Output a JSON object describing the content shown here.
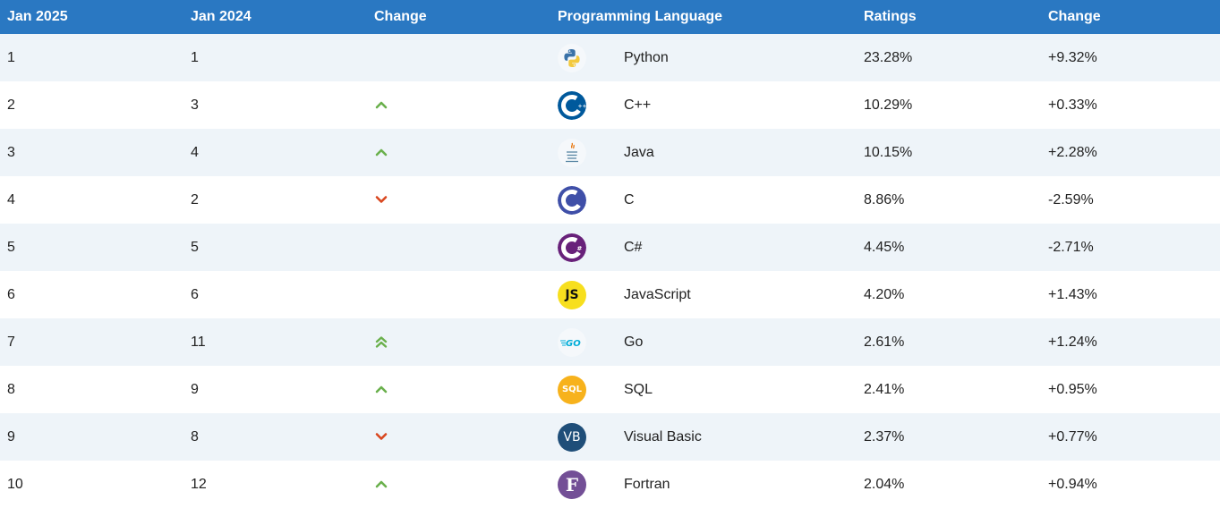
{
  "headers": {
    "jan2025": "Jan 2025",
    "jan2024": "Jan 2024",
    "change": "Change",
    "language": "Programming Language",
    "ratings": "Ratings",
    "rating_change": "Change"
  },
  "rows": [
    {
      "rank2025": "1",
      "rank2024": "1",
      "trend": "none",
      "icon": "python-logo-icon",
      "language": "Python",
      "rating": "23.28%",
      "change": "+9.32%"
    },
    {
      "rank2025": "2",
      "rank2024": "3",
      "trend": "up",
      "icon": "cpp-logo-icon",
      "language": "C++",
      "rating": "10.29%",
      "change": "+0.33%"
    },
    {
      "rank2025": "3",
      "rank2024": "4",
      "trend": "up",
      "icon": "java-logo-icon",
      "language": "Java",
      "rating": "10.15%",
      "change": "+2.28%"
    },
    {
      "rank2025": "4",
      "rank2024": "2",
      "trend": "down",
      "icon": "c-logo-icon",
      "language": "C",
      "rating": "8.86%",
      "change": "-2.59%"
    },
    {
      "rank2025": "5",
      "rank2024": "5",
      "trend": "none",
      "icon": "csharp-logo-icon",
      "language": "C#",
      "rating": "4.45%",
      "change": "-2.71%"
    },
    {
      "rank2025": "6",
      "rank2024": "6",
      "trend": "none",
      "icon": "javascript-logo-icon",
      "language": "JavaScript",
      "rating": "4.20%",
      "change": "+1.43%"
    },
    {
      "rank2025": "7",
      "rank2024": "11",
      "trend": "double-up",
      "icon": "go-logo-icon",
      "language": "Go",
      "rating": "2.61%",
      "change": "+1.24%"
    },
    {
      "rank2025": "8",
      "rank2024": "9",
      "trend": "up",
      "icon": "sql-logo-icon",
      "language": "SQL",
      "rating": "2.41%",
      "change": "+0.95%"
    },
    {
      "rank2025": "9",
      "rank2024": "8",
      "trend": "down",
      "icon": "visual-basic-logo-icon",
      "language": "Visual Basic",
      "rating": "2.37%",
      "change": "+0.77%"
    },
    {
      "rank2025": "10",
      "rank2024": "12",
      "trend": "up",
      "icon": "fortran-logo-icon",
      "language": "Fortran",
      "rating": "2.04%",
      "change": "+0.94%"
    }
  ],
  "logo_text": {
    "javascript": "JS",
    "go": "GO",
    "sql": "SQL",
    "visual_basic": "VB",
    "fortran": "F"
  },
  "colors": {
    "header_bg": "#2a78c2",
    "row_alt_bg": "#eef4f9",
    "trend_up": "#6ab04c",
    "trend_down": "#d9471f"
  }
}
